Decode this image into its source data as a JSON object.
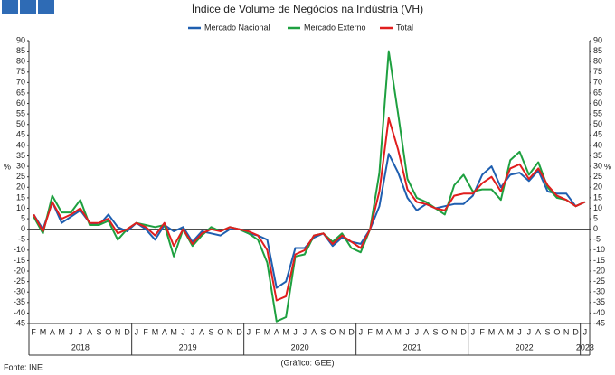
{
  "chart_data": {
    "type": "line",
    "title": "Índice de Volume de Negócios na Indústria (VH)",
    "y_label": "%",
    "source": "Fonte: INE",
    "credit": "(Gráfico: GEE)",
    "categories": [
      "F",
      "M",
      "A",
      "M",
      "J",
      "J",
      "A",
      "S",
      "O",
      "N",
      "D",
      "J",
      "F",
      "M",
      "A",
      "M",
      "J",
      "J",
      "A",
      "S",
      "O",
      "N",
      "D",
      "J",
      "F",
      "M",
      "A",
      "M",
      "J",
      "J",
      "A",
      "S",
      "O",
      "N",
      "D",
      "J",
      "F",
      "M",
      "A",
      "M",
      "J",
      "J",
      "A",
      "S",
      "O",
      "N",
      "D",
      "J",
      "F",
      "M",
      "A",
      "M",
      "J",
      "J",
      "A",
      "S",
      "O",
      "N",
      "D",
      "J"
    ],
    "year_labels": [
      "2018",
      "2019",
      "2020",
      "2021",
      "2022",
      "2023"
    ],
    "series": [
      {
        "name": "Mercado Nacional",
        "color": "#1f5fb0",
        "values": [
          7,
          0,
          13,
          3,
          6,
          9,
          3,
          2,
          7,
          1,
          -1,
          3,
          0,
          -5,
          2,
          -1,
          1,
          -6,
          -1,
          -2,
          -3,
          0,
          0,
          -2,
          -3,
          -5,
          -28,
          -25,
          -9,
          -9,
          -4,
          -2,
          -8,
          -4,
          -6,
          -7,
          0,
          11,
          36,
          27,
          15,
          9,
          12,
          10,
          11,
          12,
          12,
          16,
          26,
          30,
          20,
          26,
          27,
          23,
          28,
          18,
          17,
          17,
          11,
          13
        ]
      },
      {
        "name": "Mercado Externo",
        "color": "#1ea040",
        "values": [
          6,
          -2,
          16,
          8,
          8,
          14,
          2,
          2,
          4,
          -5,
          0,
          3,
          2,
          1,
          2,
          -13,
          0,
          -8,
          -3,
          1,
          -1,
          1,
          0,
          -2,
          -5,
          -16,
          -44,
          -42,
          -13,
          -12,
          -3,
          -2,
          -6,
          -2,
          -9,
          -11,
          0,
          27,
          85,
          55,
          24,
          15,
          13,
          10,
          7,
          21,
          26,
          18,
          19,
          19,
          14,
          33,
          37,
          26,
          32,
          20,
          15,
          14,
          11,
          13
        ]
      },
      {
        "name": "Total",
        "color": "#e01e1e",
        "values": [
          7,
          -1,
          13,
          5,
          7,
          10,
          3,
          3,
          5,
          -2,
          0,
          3,
          1,
          -3,
          3,
          -8,
          0,
          -7,
          -2,
          0,
          -1,
          1,
          0,
          -1,
          -3,
          -10,
          -34,
          -32,
          -12,
          -10,
          -3,
          -2,
          -7,
          -3,
          -6,
          -9,
          0,
          18,
          53,
          38,
          19,
          13,
          12,
          10,
          9,
          16,
          17,
          17,
          22,
          25,
          18,
          29,
          31,
          24,
          29,
          21,
          16,
          14,
          11,
          13
        ]
      }
    ],
    "ylim": [
      -45,
      90
    ],
    "yticks": [
      -45,
      -40,
      -35,
      -30,
      -25,
      -20,
      -15,
      -10,
      -5,
      0,
      5,
      10,
      15,
      20,
      25,
      30,
      35,
      40,
      45,
      50,
      55,
      60,
      65,
      70,
      75,
      80,
      85,
      90
    ]
  }
}
